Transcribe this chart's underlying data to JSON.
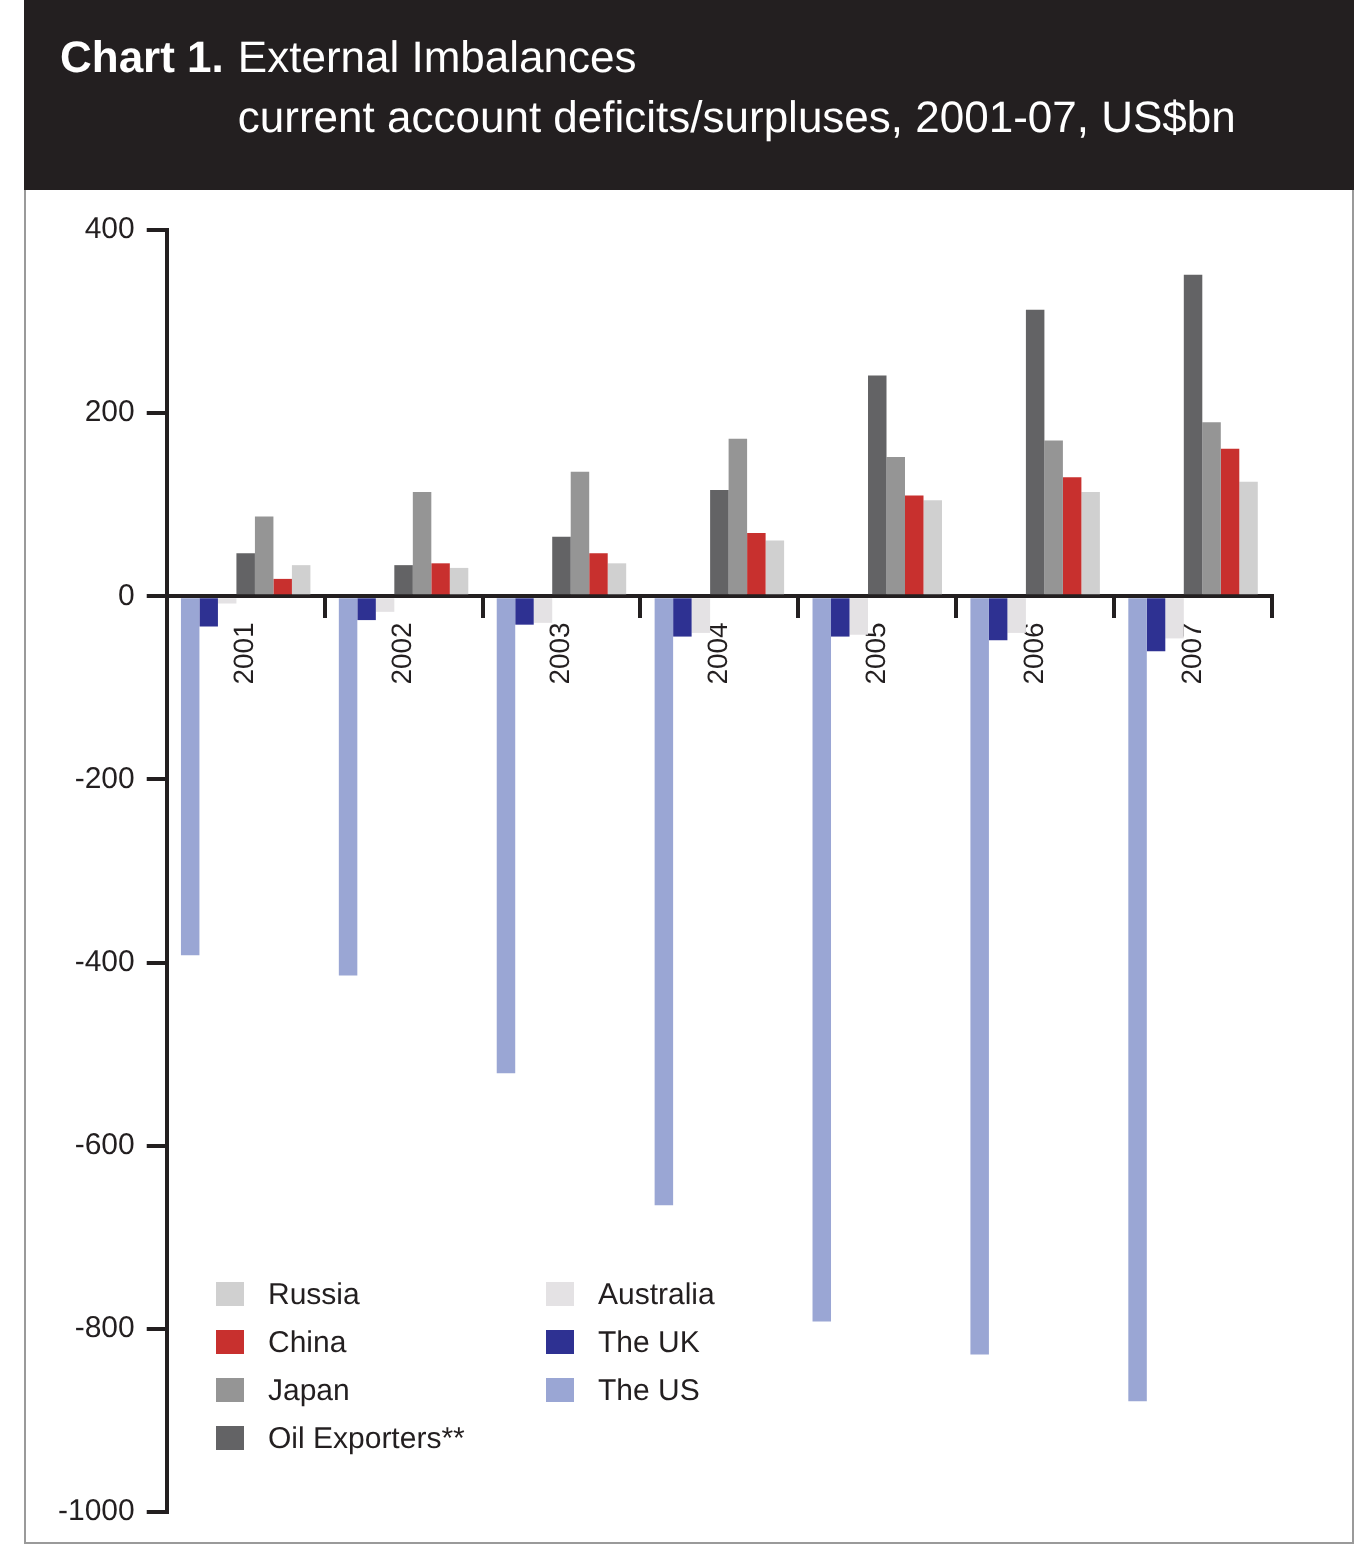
{
  "chart_data": {
    "type": "bar",
    "title": "Chart 1. External Imbalances",
    "subtitle": "current account deficits/surpluses, 2001-07, US$bn",
    "categories": [
      "2001",
      "2002",
      "2003",
      "2004",
      "2005",
      "2006",
      "2007"
    ],
    "series": [
      {
        "name": "The US",
        "color": "#9aa6d4",
        "values": [
          -392,
          -414,
          -521,
          -665,
          -792,
          -828,
          -879
        ]
      },
      {
        "name": "The UK",
        "color": "#2e3192",
        "values": [
          -33,
          -26,
          -31,
          -44,
          -44,
          -48,
          -60
        ]
      },
      {
        "name": "Australia",
        "color": "#e4e2e4",
        "values": [
          -8,
          -17,
          -29,
          -40,
          -42,
          -40,
          -46
        ]
      },
      {
        "name": "Oil Exporters**",
        "color": "#636365",
        "values": [
          47,
          34,
          65,
          116,
          241,
          313,
          351
        ]
      },
      {
        "name": "Japan",
        "color": "#959595",
        "values": [
          87,
          114,
          136,
          172,
          152,
          170,
          190
        ]
      },
      {
        "name": "China",
        "color": "#c8302e",
        "values": [
          19,
          36,
          47,
          69,
          110,
          130,
          161
        ]
      },
      {
        "name": "Russia",
        "color": "#d0d0d0",
        "values": [
          34,
          31,
          36,
          61,
          105,
          114,
          125
        ]
      }
    ],
    "ylim": [
      -1000,
      400
    ],
    "yticks": [
      -1000,
      -800,
      -600,
      -400,
      -200,
      0,
      200,
      400
    ],
    "grid": false,
    "legend": "bottom left"
  }
}
